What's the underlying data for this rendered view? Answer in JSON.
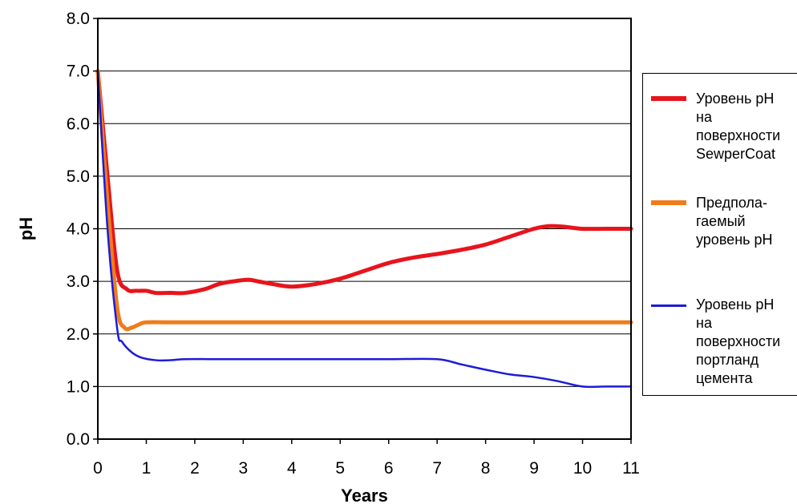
{
  "chart_data": {
    "type": "line",
    "xlabel": "Years",
    "ylabel": "pH",
    "xlim": [
      0,
      11
    ],
    "ylim": [
      0,
      8
    ],
    "x_ticks": [
      "0",
      "1",
      "2",
      "3",
      "4",
      "5",
      "6",
      "7",
      "8",
      "9",
      "10",
      "11"
    ],
    "y_ticks": [
      "0.0",
      "1.0",
      "2.0",
      "3.0",
      "4.0",
      "5.0",
      "6.0",
      "7.0",
      "8.0"
    ],
    "grid": "horizontal",
    "legend_position": "right",
    "series": [
      {
        "name": "Уровень pH\nна\nповерхности\nSewperCoat",
        "color": "#e8141c",
        "points": [
          [
            0,
            7.0
          ],
          [
            0.2,
            5.0
          ],
          [
            0.4,
            3.2
          ],
          [
            0.6,
            2.85
          ],
          [
            0.8,
            2.82
          ],
          [
            1.0,
            2.82
          ],
          [
            1.2,
            2.78
          ],
          [
            1.5,
            2.78
          ],
          [
            1.8,
            2.78
          ],
          [
            2.2,
            2.85
          ],
          [
            2.5,
            2.95
          ],
          [
            2.8,
            3.0
          ],
          [
            3.1,
            3.03
          ],
          [
            3.3,
            3.0
          ],
          [
            3.6,
            2.95
          ],
          [
            4.0,
            2.9
          ],
          [
            4.5,
            2.95
          ],
          [
            5.0,
            3.05
          ],
          [
            5.5,
            3.2
          ],
          [
            6.0,
            3.35
          ],
          [
            6.5,
            3.45
          ],
          [
            7.0,
            3.52
          ],
          [
            7.5,
            3.6
          ],
          [
            8.0,
            3.7
          ],
          [
            8.5,
            3.85
          ],
          [
            9.0,
            4.0
          ],
          [
            9.3,
            4.05
          ],
          [
            9.6,
            4.04
          ],
          [
            10.0,
            4.0
          ],
          [
            10.5,
            4.0
          ],
          [
            11.0,
            4.0
          ]
        ]
      },
      {
        "name": "Предпола-\nгаемый\nуровень pH",
        "color": "#f07c1a",
        "points": [
          [
            0,
            7.0
          ],
          [
            0.2,
            4.5
          ],
          [
            0.4,
            2.5
          ],
          [
            0.55,
            2.12
          ],
          [
            0.7,
            2.12
          ],
          [
            0.85,
            2.18
          ],
          [
            1.0,
            2.22
          ],
          [
            1.5,
            2.22
          ],
          [
            3.0,
            2.22
          ],
          [
            5.0,
            2.22
          ],
          [
            7.0,
            2.22
          ],
          [
            9.0,
            2.22
          ],
          [
            11.0,
            2.22
          ]
        ]
      },
      {
        "name": "Уровень pH\nна\nповерхности\nпортланд\nцемента",
        "color": "#1c1cd8",
        "points": [
          [
            0,
            7.0
          ],
          [
            0.2,
            4.0
          ],
          [
            0.4,
            2.1
          ],
          [
            0.5,
            1.85
          ],
          [
            0.7,
            1.65
          ],
          [
            0.9,
            1.55
          ],
          [
            1.2,
            1.5
          ],
          [
            1.5,
            1.5
          ],
          [
            1.8,
            1.52
          ],
          [
            2.5,
            1.52
          ],
          [
            3.0,
            1.52
          ],
          [
            4.0,
            1.52
          ],
          [
            5.0,
            1.52
          ],
          [
            6.0,
            1.52
          ],
          [
            7.0,
            1.52
          ],
          [
            7.5,
            1.42
          ],
          [
            8.0,
            1.32
          ],
          [
            8.5,
            1.23
          ],
          [
            9.0,
            1.18
          ],
          [
            9.5,
            1.1
          ],
          [
            10.0,
            1.0
          ],
          [
            10.5,
            1.0
          ],
          [
            11.0,
            1.0
          ]
        ]
      }
    ]
  }
}
